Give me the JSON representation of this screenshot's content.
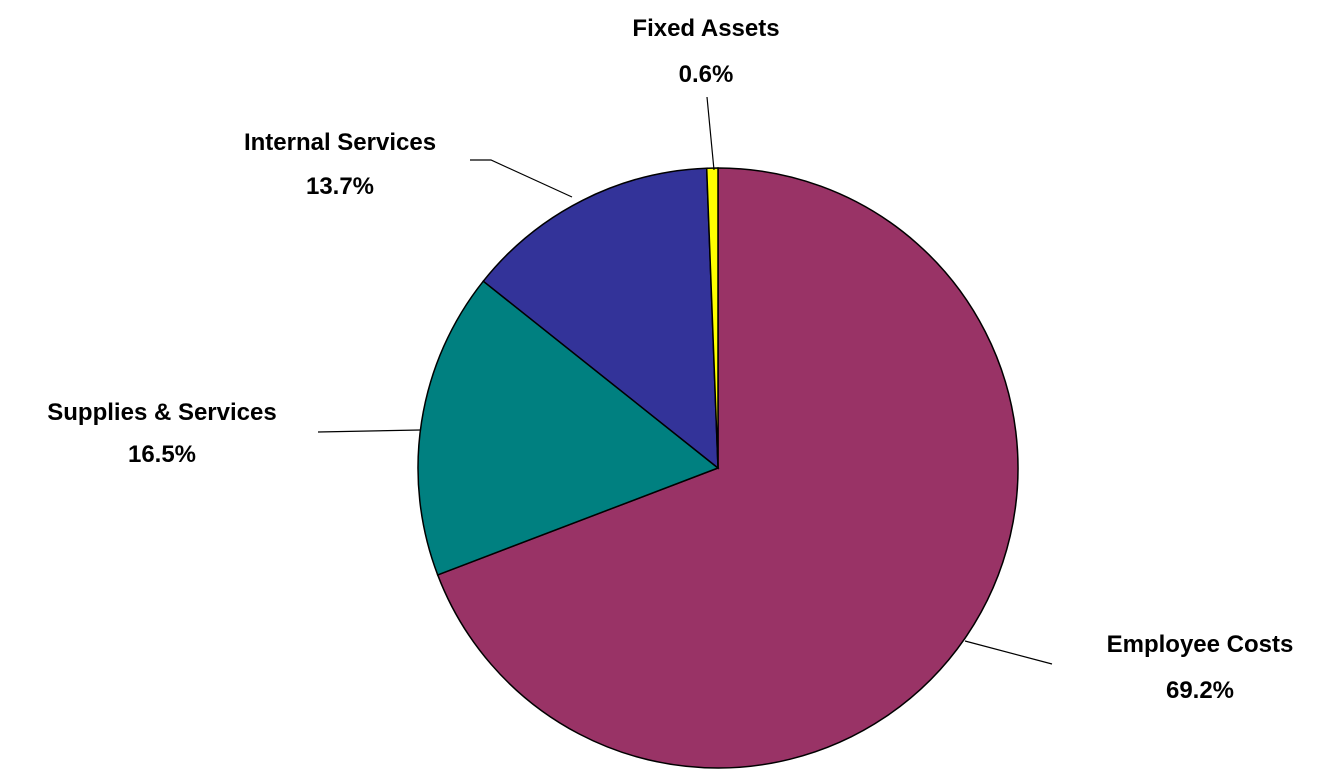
{
  "chart_data": {
    "type": "pie",
    "start": "12 o'clock",
    "direction": "clockwise",
    "slices": [
      {
        "label": "Employee Costs",
        "value": 69.2,
        "display": "69.2%",
        "color": "#993366"
      },
      {
        "label": "Supplies & Services",
        "value": 16.5,
        "display": "16.5%",
        "color": "#008080"
      },
      {
        "label": "Internal Services",
        "value": 13.7,
        "display": "13.7%",
        "color": "#333399"
      },
      {
        "label": "Fixed Assets",
        "value": 0.6,
        "display": "0.6%",
        "color": "#FFFF00"
      }
    ]
  }
}
